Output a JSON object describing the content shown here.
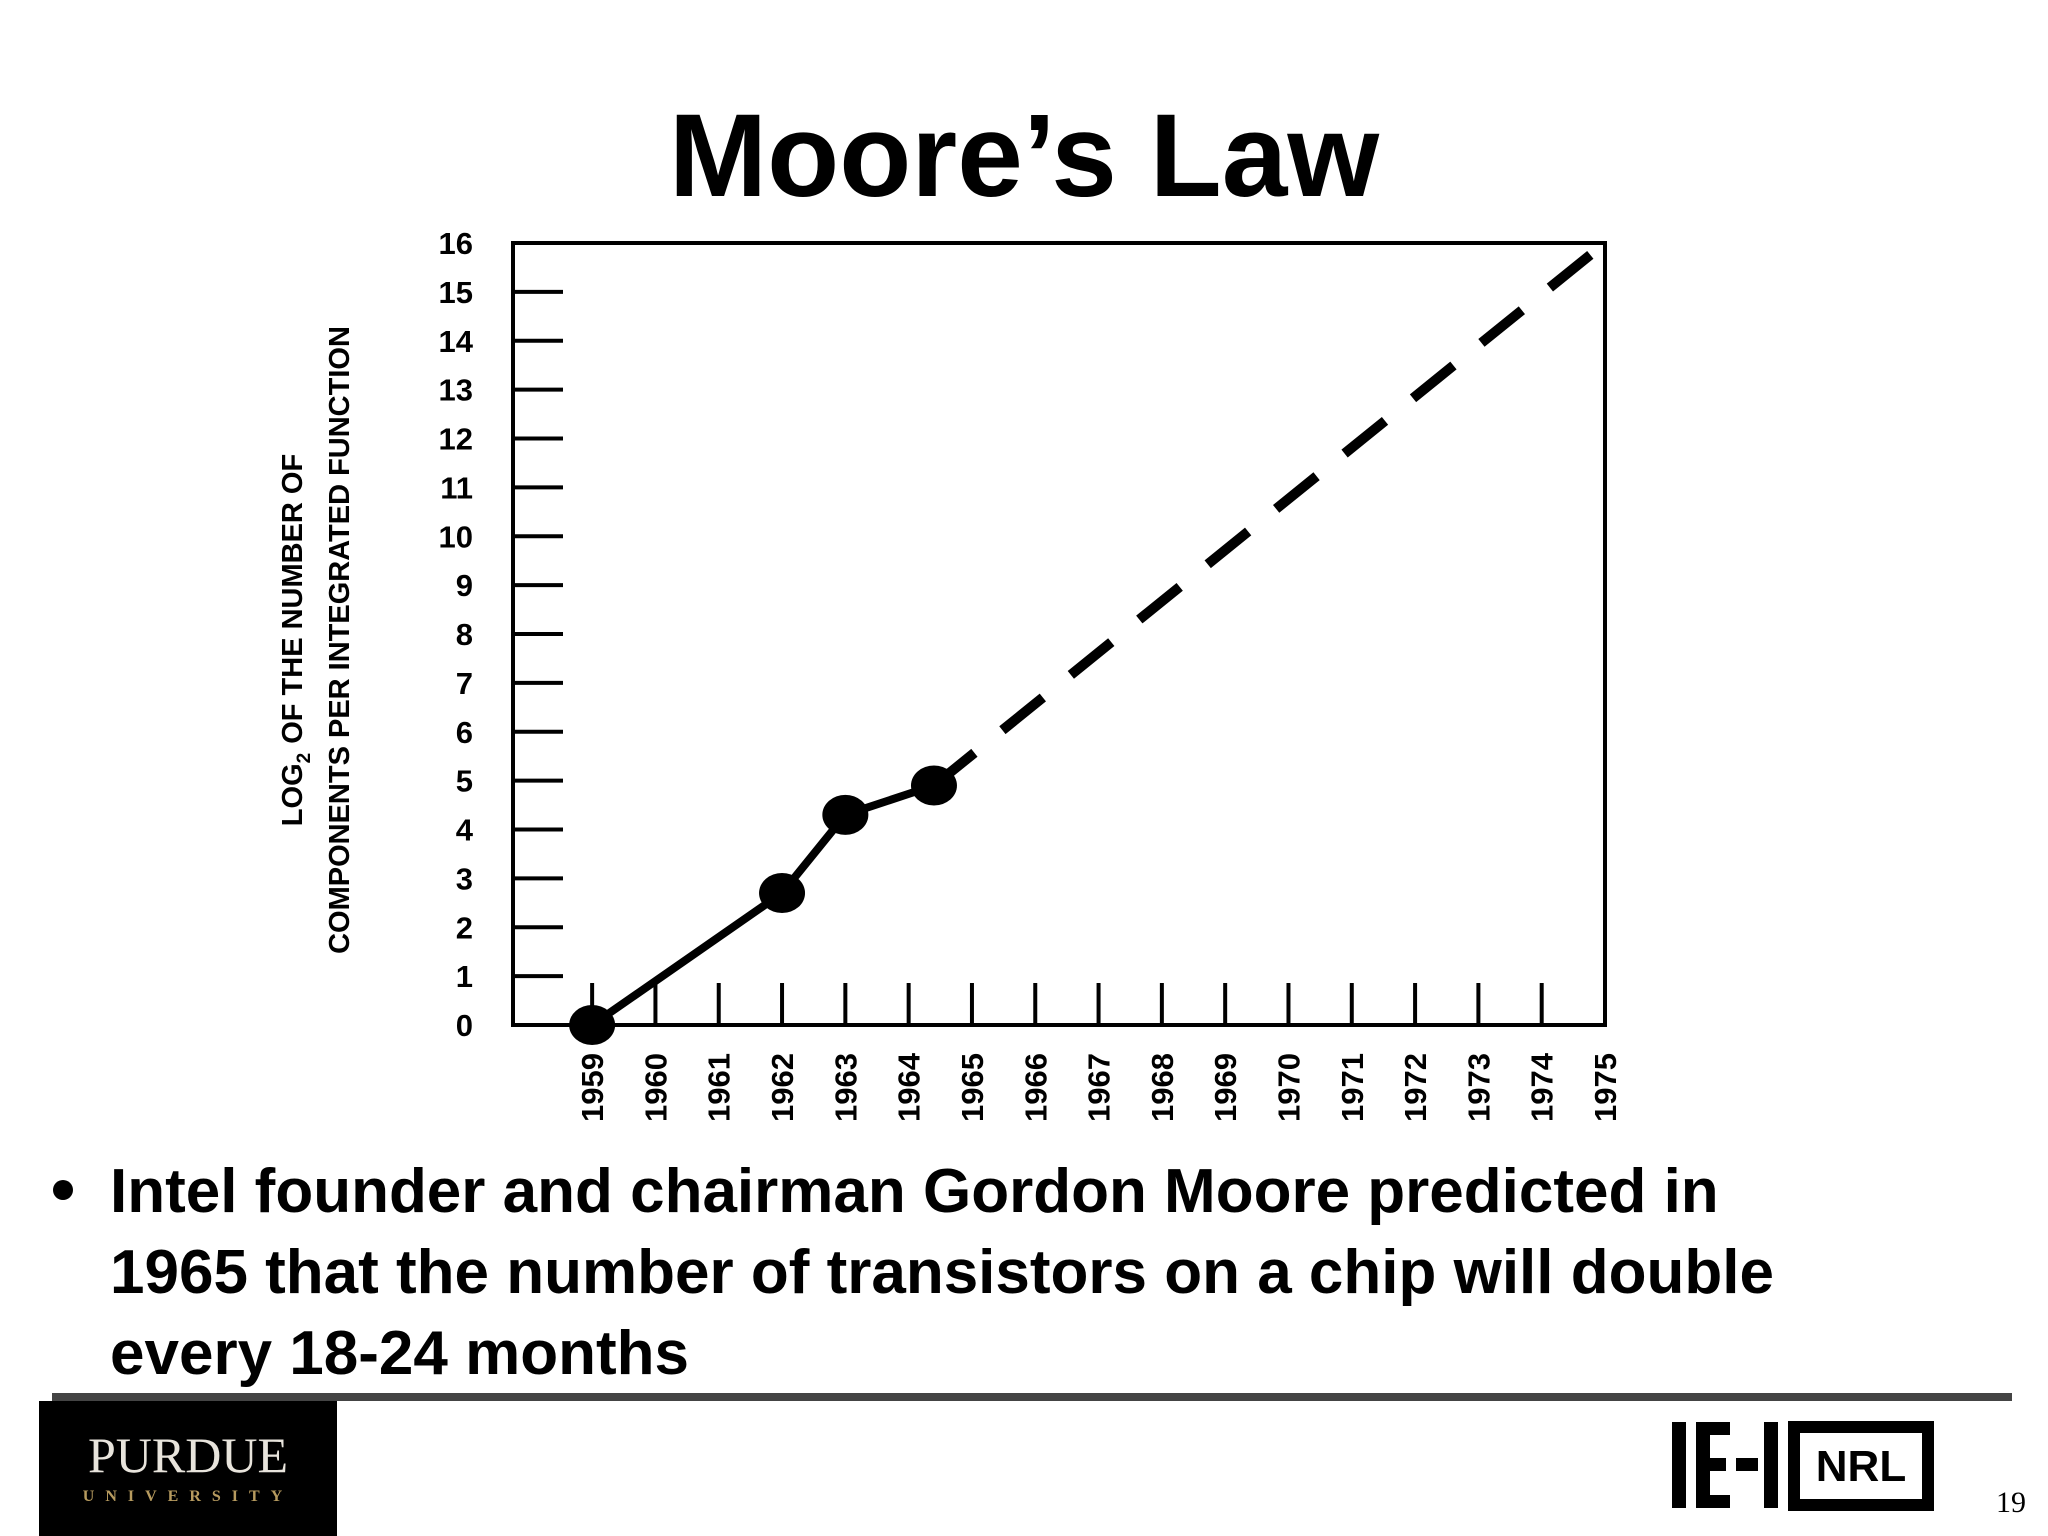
{
  "title": "Moore’s Law",
  "chart_data": {
    "type": "line",
    "ylabel": [
      "LOG",
      "2",
      "OF THE NUMBER OF",
      "COMPONENTS PER INTEGRATED FUNCTION"
    ],
    "series": [
      {
        "x": [
          1959,
          1962,
          1963,
          1964.4
        ],
        "values": [
          0,
          2.7,
          4.3,
          4.9
        ],
        "color": "#000000",
        "marker": "circle",
        "dashed": false
      },
      {
        "x": [
          1964.4,
          1975
        ],
        "values": [
          4.9,
          16
        ],
        "color": "#000000",
        "dashed": true
      }
    ],
    "xlim": [
      1957.75,
      1975
    ],
    "ylim": [
      0,
      16
    ],
    "xticks": [
      1959,
      1960,
      1961,
      1962,
      1963,
      1964,
      1965,
      1966,
      1967,
      1968,
      1969,
      1970,
      1971,
      1972,
      1973,
      1974,
      1975
    ],
    "yticks": [
      0,
      1,
      2,
      3,
      4,
      5,
      6,
      7,
      8,
      9,
      10,
      11,
      12,
      13,
      14,
      15,
      16
    ]
  },
  "bullet": [
    "Intel founder and chairman Gordon Moore predicted in",
    "1965 that the number of transistors on a chip will double",
    "every 18-24 months"
  ],
  "footer": {
    "logo_name": "PURDUE",
    "logo_sub": "UNIVERSITY",
    "lab": "NRL",
    "page": "19"
  }
}
